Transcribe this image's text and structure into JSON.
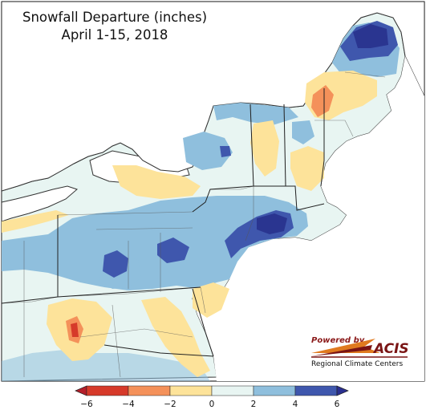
{
  "title": {
    "line1": "Snowfall Departure (inches)",
    "line2": "April 1-15, 2018"
  },
  "colorbar": {
    "ticks": [
      "−6",
      "−4",
      "−2",
      "0",
      "2",
      "4",
      "6"
    ],
    "bins": [
      {
        "from": -6,
        "to": -4,
        "color": "#d63a2a"
      },
      {
        "from": -4,
        "to": -2,
        "color": "#f4915a"
      },
      {
        "from": -2,
        "to": 0,
        "color": "#fde39a"
      },
      {
        "from": 0,
        "to": 2,
        "color": "#e8f5f2"
      },
      {
        "from": 2,
        "to": 4,
        "color": "#8fbfdd"
      },
      {
        "from": 4,
        "to": 6,
        "color": "#3f57ad"
      }
    ],
    "under_color": "#b51f2a",
    "over_color": "#2a2f8f"
  },
  "logo": {
    "powered": "Powered by",
    "acis": "ACIS",
    "rcc": "Regional Climate Centers"
  },
  "colors": {
    "land_default": "#e8f5f2",
    "water": "#ffffff",
    "border": "#2b2b2b"
  }
}
